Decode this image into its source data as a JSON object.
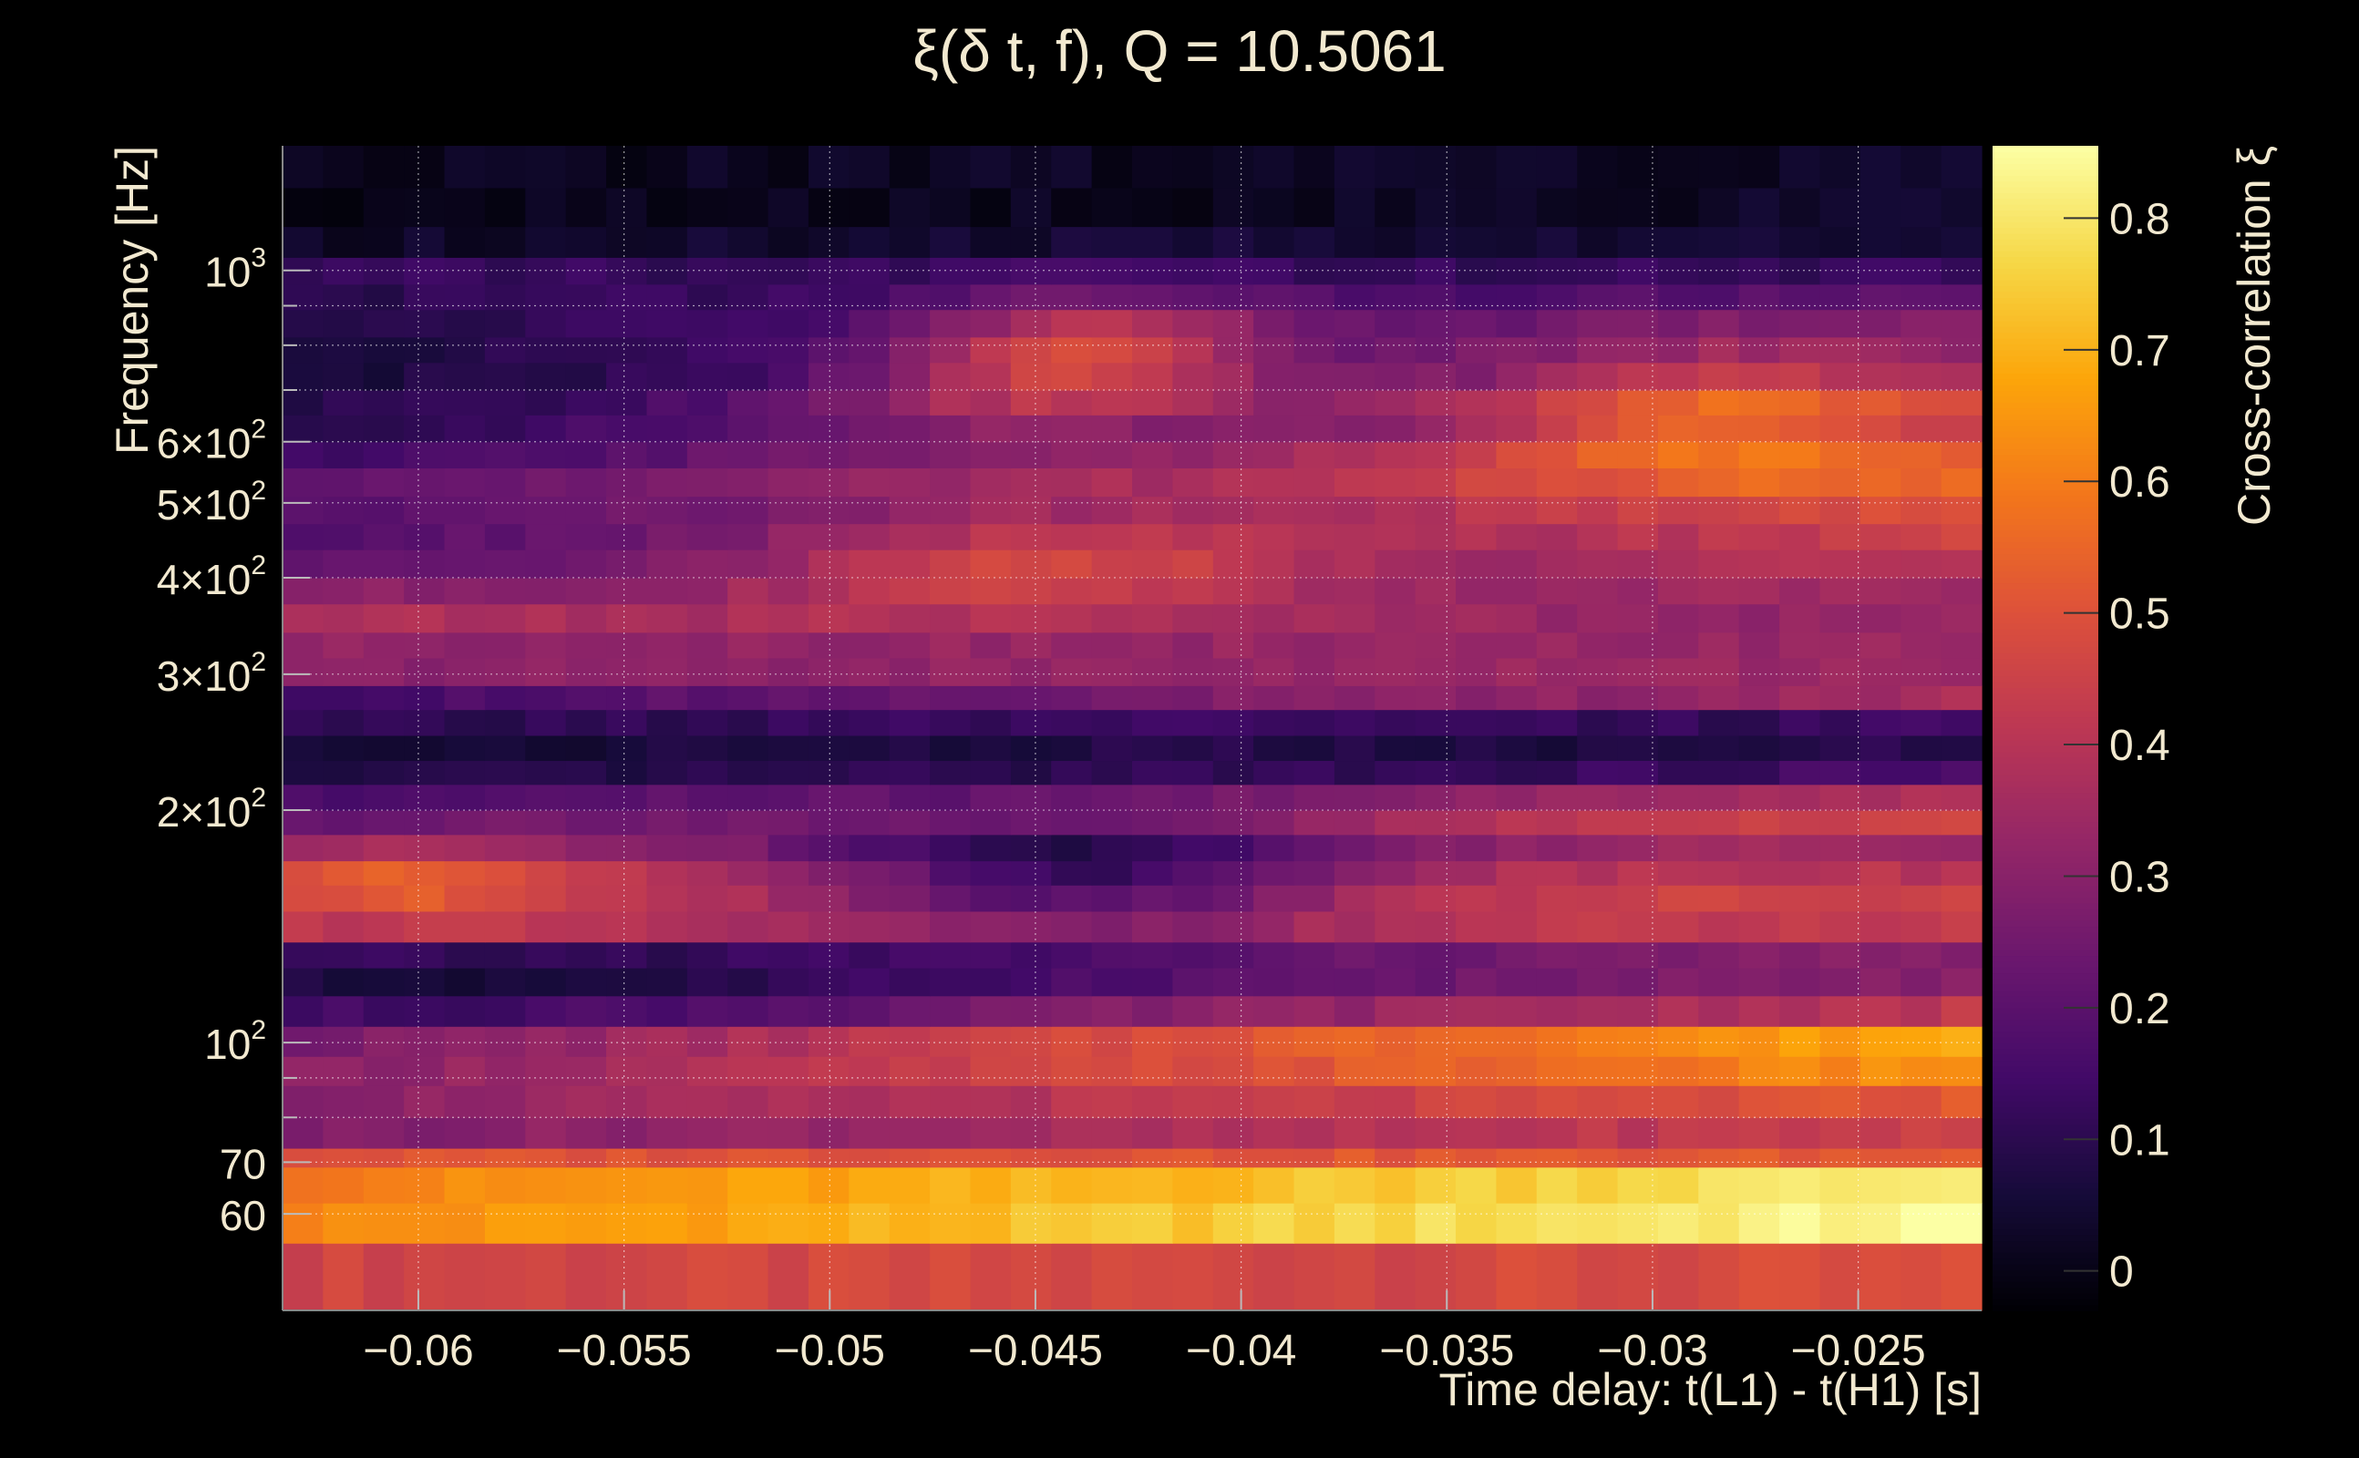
{
  "chart_data": {
    "type": "heatmap",
    "title": "ξ(δ t, f), Q = 10.5061",
    "xlabel": "Time delay: t(L1) - t(H1) [s]",
    "ylabel": "Frequency [Hz]",
    "colorbar_label": "Cross-correlation ξ",
    "colormap": "inferno",
    "x_range": [
      -0.0633,
      -0.022
    ],
    "y_range": [
      45,
      1450
    ],
    "y_scale": "log",
    "z_range": [
      -0.03,
      0.855
    ],
    "grid": true,
    "x_ticks": [
      {
        "value": -0.06,
        "label": "−0.06"
      },
      {
        "value": -0.055,
        "label": "−0.055"
      },
      {
        "value": -0.05,
        "label": "−0.05"
      },
      {
        "value": -0.045,
        "label": "−0.045"
      },
      {
        "value": -0.04,
        "label": "−0.04"
      },
      {
        "value": -0.035,
        "label": "−0.035"
      },
      {
        "value": -0.03,
        "label": "−0.03"
      },
      {
        "value": -0.025,
        "label": "−0.025"
      }
    ],
    "y_ticks": [
      {
        "value": 60,
        "mant": "60",
        "exp": ""
      },
      {
        "value": 70,
        "mant": "70",
        "exp": ""
      },
      {
        "value": 100,
        "mant": "10",
        "exp": "2"
      },
      {
        "value": 200,
        "mant": "2×10",
        "exp": "2"
      },
      {
        "value": 300,
        "mant": "3×10",
        "exp": "2"
      },
      {
        "value": 400,
        "mant": "4×10",
        "exp": "2"
      },
      {
        "value": 500,
        "mant": "5×10",
        "exp": "2"
      },
      {
        "value": 600,
        "mant": "6×10",
        "exp": "2"
      },
      {
        "value": 1000,
        "mant": "10",
        "exp": "3"
      }
    ],
    "y_minor_ticks": [
      80,
      90,
      700,
      800,
      900
    ],
    "colorbar_ticks": [
      {
        "value": 0,
        "label": "0"
      },
      {
        "value": 0.1,
        "label": "0.1"
      },
      {
        "value": 0.2,
        "label": "0.2"
      },
      {
        "value": 0.3,
        "label": "0.3"
      },
      {
        "value": 0.4,
        "label": "0.4"
      },
      {
        "value": 0.5,
        "label": "0.5"
      },
      {
        "value": 0.6,
        "label": "0.6"
      },
      {
        "value": 0.7,
        "label": "0.7"
      },
      {
        "value": 0.8,
        "label": "0.8"
      }
    ],
    "y_bands": [
      {
        "lo": 45,
        "hi": 55,
        "start": 0.46,
        "end": 0.48
      },
      {
        "lo": 55,
        "hi": 62,
        "start": 0.62,
        "end": 0.85
      },
      {
        "lo": 62,
        "hi": 69,
        "start": 0.6,
        "end": 0.82
      },
      {
        "lo": 69,
        "hi": 73,
        "start": 0.5,
        "end": 0.52
      },
      {
        "lo": 73,
        "hi": 80,
        "start": 0.28,
        "end": 0.45
      },
      {
        "lo": 80,
        "hi": 88,
        "start": 0.3,
        "end": 0.52
      },
      {
        "lo": 88,
        "hi": 96,
        "start": 0.3,
        "end": 0.65
      },
      {
        "lo": 96,
        "hi": 105,
        "start": 0.28,
        "end": 0.7
      },
      {
        "lo": 105,
        "hi": 115,
        "start": 0.18,
        "end": 0.42
      },
      {
        "lo": 115,
        "hi": 125,
        "start": 0.12,
        "end": 0.3
      },
      {
        "lo": 125,
        "hi": 135,
        "start": 0.15,
        "end": 0.3
      },
      {
        "lo": 135,
        "hi": 148,
        "start": 0.42,
        "end": 0.42
      },
      {
        "lo": 148,
        "hi": 160,
        "start": 0.45,
        "end": 0.45
      },
      {
        "lo": 160,
        "hi": 172,
        "start": 0.46,
        "end": 0.4
      },
      {
        "lo": 172,
        "hi": 186,
        "start": 0.32,
        "end": 0.35
      },
      {
        "lo": 186,
        "hi": 200,
        "start": 0.22,
        "end": 0.48
      },
      {
        "lo": 200,
        "hi": 216,
        "start": 0.15,
        "end": 0.4
      },
      {
        "lo": 216,
        "hi": 232,
        "start": 0.06,
        "end": 0.18
      },
      {
        "lo": 232,
        "hi": 250,
        "start": 0.05,
        "end": 0.12
      },
      {
        "lo": 250,
        "hi": 270,
        "start": 0.1,
        "end": 0.15
      },
      {
        "lo": 270,
        "hi": 290,
        "start": 0.15,
        "end": 0.38
      },
      {
        "lo": 290,
        "hi": 315,
        "start": 0.3,
        "end": 0.35
      },
      {
        "lo": 315,
        "hi": 340,
        "start": 0.32,
        "end": 0.33
      },
      {
        "lo": 340,
        "hi": 370,
        "start": 0.38,
        "end": 0.32
      },
      {
        "lo": 370,
        "hi": 400,
        "start": 0.3,
        "end": 0.35
      },
      {
        "lo": 400,
        "hi": 435,
        "start": 0.22,
        "end": 0.4
      },
      {
        "lo": 435,
        "hi": 470,
        "start": 0.18,
        "end": 0.45
      },
      {
        "lo": 470,
        "hi": 510,
        "start": 0.18,
        "end": 0.48
      },
      {
        "lo": 510,
        "hi": 555,
        "start": 0.2,
        "end": 0.52
      },
      {
        "lo": 555,
        "hi": 600,
        "start": 0.12,
        "end": 0.5
      },
      {
        "lo": 600,
        "hi": 650,
        "start": 0.1,
        "end": 0.38
      },
      {
        "lo": 650,
        "hi": 700,
        "start": 0.08,
        "end": 0.4
      },
      {
        "lo": 700,
        "hi": 760,
        "start": 0.05,
        "end": 0.32
      },
      {
        "lo": 760,
        "hi": 820,
        "start": 0.06,
        "end": 0.3
      },
      {
        "lo": 820,
        "hi": 890,
        "start": 0.08,
        "end": 0.28
      },
      {
        "lo": 890,
        "hi": 960,
        "start": 0.1,
        "end": 0.2
      },
      {
        "lo": 960,
        "hi": 1040,
        "start": 0.12,
        "end": 0.12
      },
      {
        "lo": 1040,
        "hi": 1140,
        "start": 0.03,
        "end": 0.06
      },
      {
        "lo": 1140,
        "hi": 1280,
        "start": 0.0,
        "end": 0.03
      },
      {
        "lo": 1280,
        "hi": 1450,
        "start": 0.01,
        "end": 0.03
      }
    ],
    "blobs": [
      {
        "x": -0.0435,
        "y": 780,
        "sx": 0.003,
        "sy": 0.05,
        "a": 0.28
      },
      {
        "x": -0.047,
        "y": 700,
        "sx": 0.003,
        "sy": 0.05,
        "a": 0.1
      },
      {
        "x": -0.0285,
        "y": 650,
        "sx": 0.004,
        "sy": 0.06,
        "a": 0.22
      },
      {
        "x": -0.045,
        "y": 415,
        "sx": 0.0045,
        "sy": 0.04,
        "a": 0.17
      },
      {
        "x": -0.06,
        "y": 160,
        "sx": 0.0025,
        "sy": 0.04,
        "a": 0.08
      },
      {
        "x": -0.044,
        "y": 165,
        "sx": 0.005,
        "sy": 0.05,
        "a": -0.3
      },
      {
        "x": -0.056,
        "y": 120,
        "sx": 0.008,
        "sy": 0.05,
        "a": -0.08
      },
      {
        "x": -0.03,
        "y": 240,
        "sx": 0.005,
        "sy": 0.04,
        "a": -0.04
      }
    ]
  }
}
